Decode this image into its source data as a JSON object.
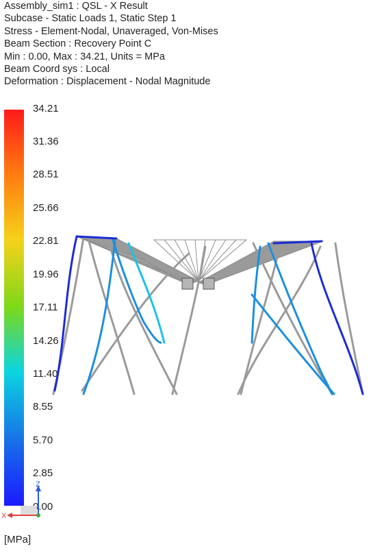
{
  "header": {
    "line1": "Assembly_sim1 : QSL - X Result",
    "line2": "Subcase - Static Loads 1, Static Step 1",
    "line3": "Stress - Element-Nodal, Unaveraged, Von-Mises",
    "line4": "Beam Section : Recovery Point C",
    "line5": "Min : 0.00, Max : 34.21, Units = MPa",
    "line6": "Beam Coord sys : Local",
    "line7": "Deformation : Displacement - Nodal Magnitude"
  },
  "legend": {
    "values": [
      "34.21",
      "31.36",
      "28.51",
      "25.66",
      "22.81",
      "19.96",
      "17.11",
      "14.26",
      "11.40",
      "8.55",
      "5.70",
      "2.85",
      "0.00"
    ],
    "min": 0.0,
    "max": 34.21,
    "colors": [
      "#ff1a1a",
      "#ff7a10",
      "#f5d21a",
      "#7cd81a",
      "#0bd5e0",
      "#1874e6",
      "#1a1aff"
    ],
    "unit": "[MPa]"
  },
  "triad": {
    "z_label": "Z",
    "x_label": "X"
  },
  "model": {
    "structure_color": "#9a9a9a",
    "beam_colors": [
      "#1a2bd6",
      "#1a8fe0",
      "#19c3e8"
    ]
  }
}
